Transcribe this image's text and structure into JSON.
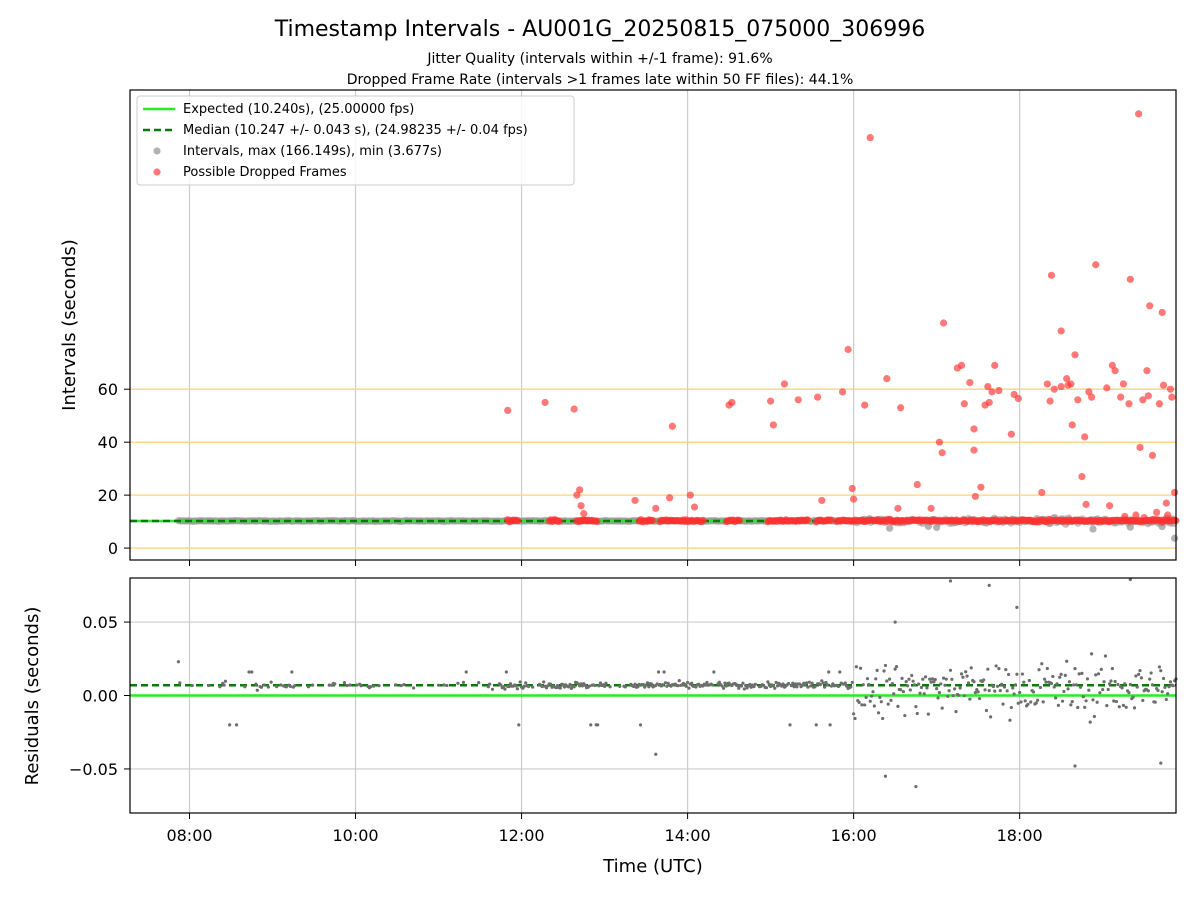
{
  "chart_data": [
    {
      "type": "scatter",
      "panel": "intervals",
      "title": "Timestamp Intervals - AU001G_20250815_075000_306996",
      "subtitle_1": "Jitter Quality (intervals within +/-1 frame): 91.6%",
      "subtitle_2": "Dropped Frame Rate (intervals >1 frames late within 50 FF files): 44.1%",
      "ylabel": "Intervals (seconds)",
      "xlim": [
        "07:17",
        "19:53"
      ],
      "ylim": [
        -4.5,
        173
      ],
      "yticks": [
        0,
        20,
        40,
        60
      ],
      "ytick_labels": [
        "0",
        "20",
        "40",
        "60"
      ],
      "gridlines": [
        0,
        20,
        40,
        60
      ],
      "x_grid": [
        "08:00",
        "10:00",
        "12:00",
        "14:00",
        "16:00",
        "18:00"
      ],
      "legend_position": "top-left",
      "colors": {
        "expected": "#22ee22",
        "median": "#0a7a0a",
        "intervals": "#9a9a9a",
        "dropped": "#ff3030",
        "gridline": "#ffd27a",
        "x_grid": "#cccccc"
      },
      "series": [
        {
          "name": "Expected (10.240s), (25.00000 fps)",
          "kind": "hline",
          "y": 10.24
        },
        {
          "name": "Median (10.247 +/- 0.043 s), (24.98235 +/- 0.04 fps)",
          "kind": "hline",
          "y": 10.247
        },
        {
          "name": "Intervals, max (166.149s), min (3.677s)",
          "kind": "scatter",
          "note_range": [
            "07:52",
            "19:53"
          ]
        },
        {
          "name": "Possible Dropped Frames",
          "kind": "scatter",
          "points": [
            {
              "x": "11:50",
              "y": 52
            },
            {
              "x": "12:17",
              "y": 55
            },
            {
              "x": "12:38",
              "y": 52.5
            },
            {
              "x": "12:40",
              "y": 20
            },
            {
              "x": "12:42",
              "y": 22
            },
            {
              "x": "12:43",
              "y": 16
            },
            {
              "x": "12:45",
              "y": 13
            },
            {
              "x": "13:22",
              "y": 18
            },
            {
              "x": "13:37",
              "y": 15
            },
            {
              "x": "13:47",
              "y": 19
            },
            {
              "x": "13:49",
              "y": 46
            },
            {
              "x": "14:02",
              "y": 20
            },
            {
              "x": "14:05",
              "y": 15.5
            },
            {
              "x": "14:30",
              "y": 54
            },
            {
              "x": "14:32",
              "y": 55
            },
            {
              "x": "15:00",
              "y": 55.5
            },
            {
              "x": "15:02",
              "y": 46.5
            },
            {
              "x": "15:10",
              "y": 62
            },
            {
              "x": "15:20",
              "y": 56
            },
            {
              "x": "15:34",
              "y": 57
            },
            {
              "x": "15:37",
              "y": 18
            },
            {
              "x": "15:52",
              "y": 59
            },
            {
              "x": "15:56",
              "y": 75
            },
            {
              "x": "15:59",
              "y": 22.5
            },
            {
              "x": "16:00",
              "y": 18.5
            },
            {
              "x": "16:08",
              "y": 54
            },
            {
              "x": "16:12",
              "y": 155
            },
            {
              "x": "16:24",
              "y": 64
            },
            {
              "x": "16:32",
              "y": 15
            },
            {
              "x": "16:34",
              "y": 53
            },
            {
              "x": "16:46",
              "y": 24
            },
            {
              "x": "16:56",
              "y": 15
            },
            {
              "x": "17:02",
              "y": 40
            },
            {
              "x": "17:04",
              "y": 36
            },
            {
              "x": "17:05",
              "y": 85
            },
            {
              "x": "17:15",
              "y": 68
            },
            {
              "x": "17:18",
              "y": 69
            },
            {
              "x": "17:20",
              "y": 54.5
            },
            {
              "x": "17:24",
              "y": 62.5
            },
            {
              "x": "17:27",
              "y": 45
            },
            {
              "x": "17:27",
              "y": 37
            },
            {
              "x": "17:28",
              "y": 19.5
            },
            {
              "x": "17:32",
              "y": 23
            },
            {
              "x": "17:35",
              "y": 54
            },
            {
              "x": "17:37",
              "y": 61
            },
            {
              "x": "17:38",
              "y": 55
            },
            {
              "x": "17:40",
              "y": 59
            },
            {
              "x": "17:42",
              "y": 69
            },
            {
              "x": "17:45",
              "y": 59.5
            },
            {
              "x": "17:54",
              "y": 43
            },
            {
              "x": "17:56",
              "y": 58
            },
            {
              "x": "17:59",
              "y": 56.5
            },
            {
              "x": "18:16",
              "y": 21
            },
            {
              "x": "18:20",
              "y": 62
            },
            {
              "x": "18:22",
              "y": 55.5
            },
            {
              "x": "18:23",
              "y": 103
            },
            {
              "x": "18:25",
              "y": 60
            },
            {
              "x": "18:30",
              "y": 61
            },
            {
              "x": "18:30",
              "y": 82
            },
            {
              "x": "18:34",
              "y": 64
            },
            {
              "x": "18:35",
              "y": 61.5
            },
            {
              "x": "18:37",
              "y": 62
            },
            {
              "x": "18:38",
              "y": 46.5
            },
            {
              "x": "18:40",
              "y": 73
            },
            {
              "x": "18:42",
              "y": 56
            },
            {
              "x": "18:45",
              "y": 27
            },
            {
              "x": "18:47",
              "y": 42
            },
            {
              "x": "18:48",
              "y": 16.5
            },
            {
              "x": "18:50",
              "y": 59
            },
            {
              "x": "18:55",
              "y": 107
            },
            {
              "x": "18:52",
              "y": 57
            },
            {
              "x": "19:03",
              "y": 60.5
            },
            {
              "x": "19:05",
              "y": 16
            },
            {
              "x": "19:07",
              "y": 69
            },
            {
              "x": "19:09",
              "y": 67
            },
            {
              "x": "19:13",
              "y": 57
            },
            {
              "x": "19:15",
              "y": 62
            },
            {
              "x": "19:16",
              "y": 12
            },
            {
              "x": "19:19",
              "y": 54.5
            },
            {
              "x": "19:20",
              "y": 101.5
            },
            {
              "x": "19:24",
              "y": 12.5
            },
            {
              "x": "19:26",
              "y": 164
            },
            {
              "x": "19:27",
              "y": 38
            },
            {
              "x": "19:29",
              "y": 56
            },
            {
              "x": "19:30",
              "y": 11.5
            },
            {
              "x": "19:32",
              "y": 67
            },
            {
              "x": "19:33",
              "y": 57.5
            },
            {
              "x": "19:34",
              "y": 91.5
            },
            {
              "x": "19:36",
              "y": 35
            },
            {
              "x": "19:39",
              "y": 13.5
            },
            {
              "x": "19:41",
              "y": 54.5
            },
            {
              "x": "19:43",
              "y": 89
            },
            {
              "x": "19:44",
              "y": 61.5
            },
            {
              "x": "19:46",
              "y": 17
            },
            {
              "x": "19:47",
              "y": 12.5
            },
            {
              "x": "19:49",
              "y": 60
            },
            {
              "x": "19:50",
              "y": 57
            },
            {
              "x": "19:52",
              "y": 21
            }
          ]
        }
      ]
    },
    {
      "type": "scatter",
      "panel": "residuals",
      "xlabel": "Time (UTC)",
      "ylabel": "Residuals (seconds)",
      "xlim": [
        "07:17",
        "19:53"
      ],
      "ylim": [
        -0.08,
        0.08
      ],
      "yticks": [
        0.05,
        0.0,
        -0.05
      ],
      "ytick_labels": [
        "0.05",
        "0.00",
        "−0.05"
      ],
      "xticks": [
        "08:00",
        "10:00",
        "12:00",
        "14:00",
        "16:00",
        "18:00"
      ],
      "colors": {
        "expected": "#22ee22",
        "median": "#0a7a0a",
        "residual": "#6e6e6e",
        "grid": "#cccccc"
      },
      "series": [
        {
          "kind": "hline",
          "y": 0.0
        },
        {
          "kind": "hline",
          "y": 0.007
        }
      ]
    }
  ]
}
